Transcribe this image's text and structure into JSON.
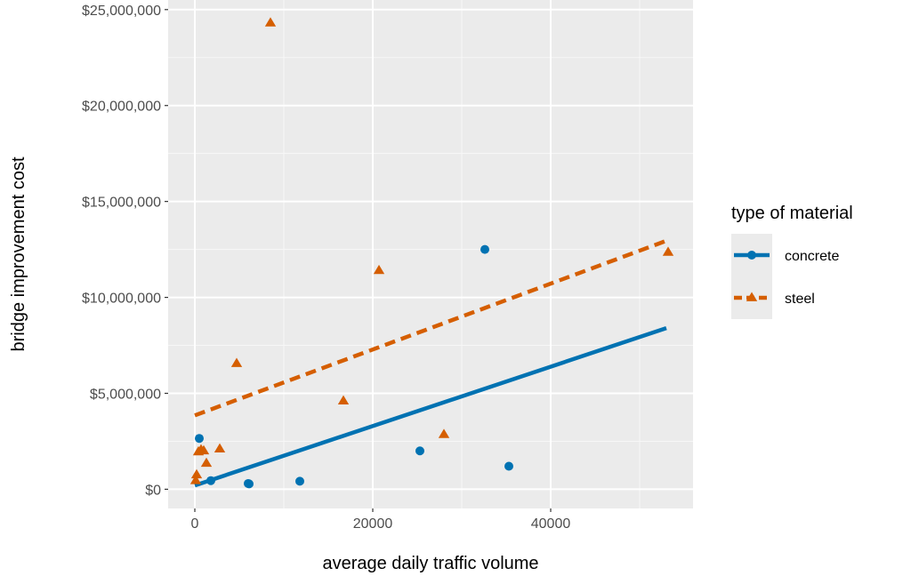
{
  "chart_data": {
    "type": "scatter",
    "title": "",
    "xlabel": "average daily traffic volume",
    "ylabel": "bridge improvement cost",
    "xlim": [
      -3000,
      56000
    ],
    "ylim": [
      -1000000,
      25500000
    ],
    "x_ticks": [
      0,
      20000,
      40000
    ],
    "x_tick_labels": [
      "0",
      "20000",
      "40000"
    ],
    "y_ticks": [
      0,
      5000000,
      10000000,
      15000000,
      20000000,
      25000000
    ],
    "y_tick_labels": [
      "$0",
      "$5,000,000",
      "$10,000,000",
      "$15,000,000",
      "$20,000,000",
      "$25,000,000"
    ],
    "grid": true,
    "legend": {
      "title": "type of material",
      "position": "right"
    },
    "series": [
      {
        "name": "concrete",
        "marker": "circle",
        "color": "#0072B2",
        "line_style": "solid",
        "points": [
          [
            500,
            2650000
          ],
          [
            1800,
            450000
          ],
          [
            6000,
            300000
          ],
          [
            6100,
            280000
          ],
          [
            11800,
            420000
          ],
          [
            25300,
            2000000
          ],
          [
            32600,
            12500000
          ],
          [
            35300,
            1200000
          ]
        ],
        "fit": [
          [
            0,
            200000
          ],
          [
            53000,
            8400000
          ]
        ]
      },
      {
        "name": "steel",
        "marker": "triangle",
        "color": "#D55E00",
        "line_style": "dashed",
        "points": [
          [
            100,
            450000
          ],
          [
            200,
            750000
          ],
          [
            400,
            1950000
          ],
          [
            700,
            2050000
          ],
          [
            1000,
            2000000
          ],
          [
            1300,
            1350000
          ],
          [
            2800,
            2100000
          ],
          [
            4700,
            6550000
          ],
          [
            8500,
            24300000
          ],
          [
            16700,
            4600000
          ],
          [
            20700,
            11400000
          ],
          [
            28000,
            2850000
          ],
          [
            53200,
            12350000
          ]
        ],
        "fit": [
          [
            0,
            3850000
          ],
          [
            53000,
            12950000
          ]
        ]
      }
    ]
  }
}
